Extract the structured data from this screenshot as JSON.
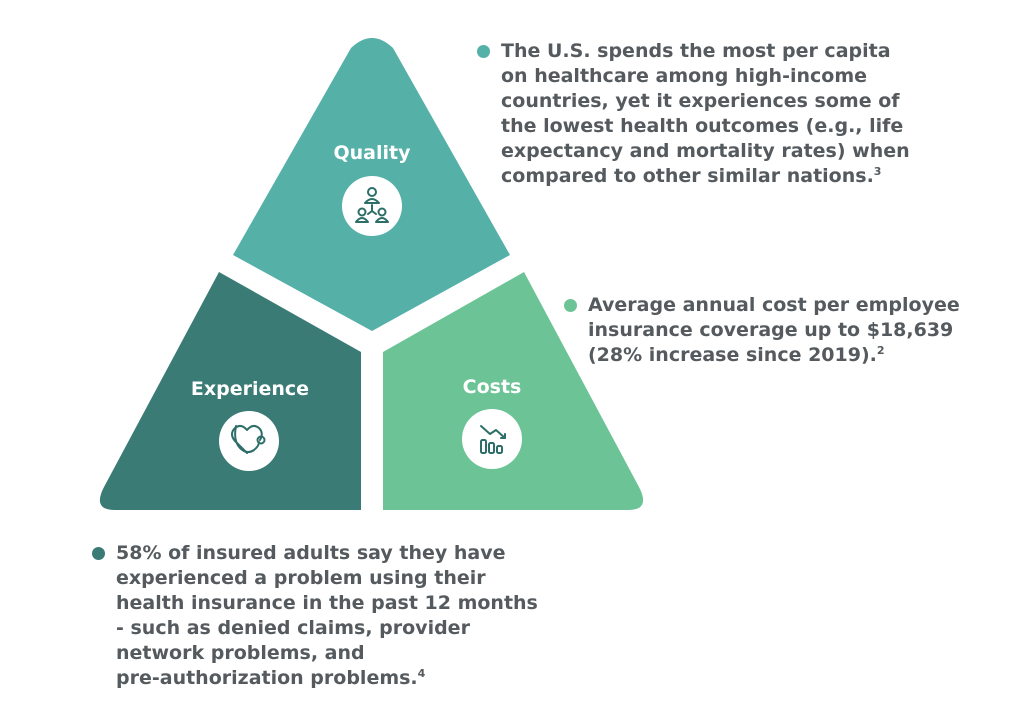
{
  "colors": {
    "quality": "#55b1a8",
    "experience": "#3a7b75",
    "costs": "#6cc496",
    "text": "#555a5e",
    "icon": "#2e6e68"
  },
  "segments": {
    "quality": {
      "label": "Quality",
      "icon": "people-network-icon"
    },
    "experience": {
      "label": "Experience",
      "icon": "stethoscope-heart-icon"
    },
    "costs": {
      "label": "Costs",
      "icon": "bar-chart-down-icon"
    }
  },
  "callouts": {
    "quality": {
      "lines": [
        "The U.S. spends the most per capita",
        "on healthcare among high-income",
        "countries, yet it experiences some of",
        "the lowest health outcomes (e.g., life",
        "expectancy and mortality rates) when",
        "compared to other similar nations."
      ],
      "footnote": "3"
    },
    "costs": {
      "lines": [
        "Average annual cost per employee",
        "insurance coverage up to $18,639",
        "(28% increase since 2019)."
      ],
      "footnote": "2"
    },
    "experience": {
      "lines": [
        "58% of insured adults say they have",
        "experienced a problem using their",
        "health insurance in the past 12 months",
        "- such as denied claims, provider",
        "network problems, and",
        "pre-authorization problems."
      ],
      "footnote": "4"
    }
  }
}
